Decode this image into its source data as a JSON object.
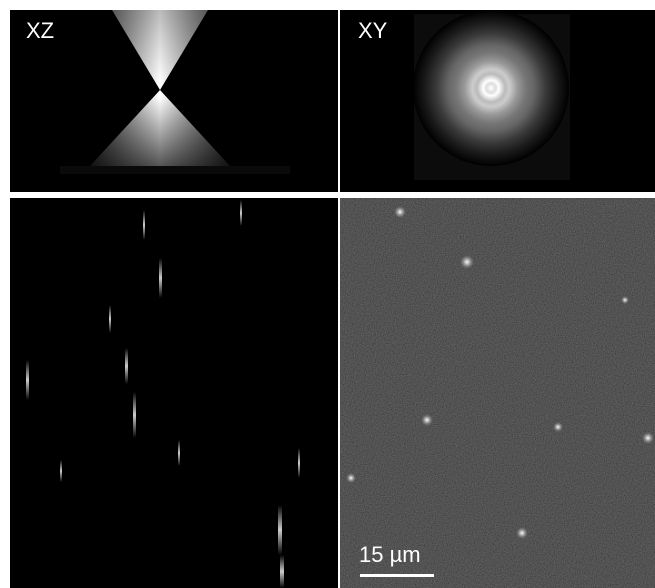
{
  "panels": {
    "xz": "XZ",
    "xy": "XY"
  },
  "scale_bar": "15 µm"
}
